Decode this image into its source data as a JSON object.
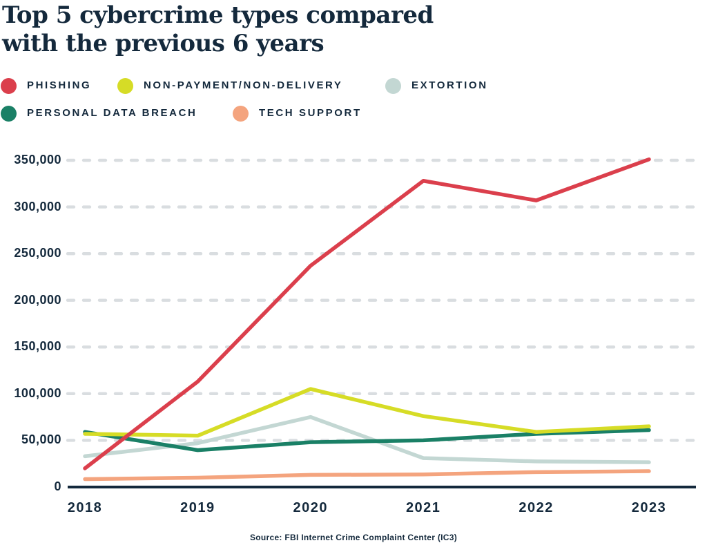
{
  "title": {
    "line1": "Top 5 cybercrime types compared",
    "line2": "with the previous 6 years"
  },
  "source_note": "Source: FBI Internet Crime Complaint Center (IC3)",
  "colors": {
    "title_text": "#14293C",
    "axis_line": "#14293C",
    "tick_label": "#14293C",
    "gridline": "#D9DDE0",
    "background": "#FFFFFF"
  },
  "chart_data": {
    "type": "line",
    "categories": [
      "2018",
      "2019",
      "2020",
      "2021",
      "2022",
      "2023"
    ],
    "series": [
      {
        "name": "PHISHING",
        "color": "#DB3F4C",
        "values": [
          20000,
          113000,
          237000,
          328000,
          307000,
          351000
        ]
      },
      {
        "name": "NON-PAYMENT/NON-DELIVERY",
        "color": "#D6DC26",
        "values": [
          57000,
          55000,
          105000,
          76000,
          59000,
          65000
        ]
      },
      {
        "name": "EXTORTION",
        "color": "#C3D7D3",
        "values": [
          33000,
          47000,
          75000,
          31000,
          27500,
          26500
        ]
      },
      {
        "name": "PERSONAL DATA BREACH",
        "color": "#1A8066",
        "values": [
          59000,
          39500,
          48000,
          50000,
          57000,
          61000
        ]
      },
      {
        "name": "TECH SUPPORT",
        "color": "#F4A47E",
        "values": [
          8500,
          10000,
          13000,
          13500,
          16000,
          17000
        ]
      }
    ],
    "ylim": [
      0,
      350000
    ],
    "ytick_step": 50000,
    "yticks": [
      "0",
      "50,000",
      "100,000",
      "150,000",
      "200,000",
      "250,000",
      "300,000",
      "350,000"
    ],
    "grid": "horizontal dashed",
    "legend_position": "top-left, two rows"
  }
}
